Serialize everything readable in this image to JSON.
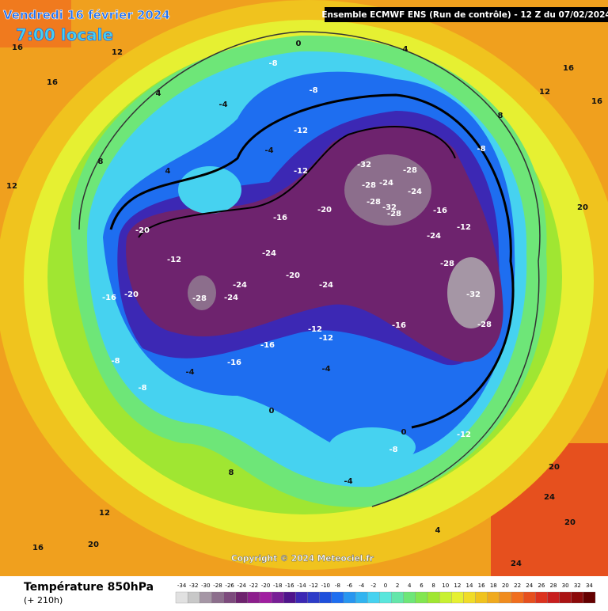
{
  "header": {
    "date": "Vendredi 16 février 2024",
    "time": "7:00 locale",
    "run": "Ensemble ECMWF ENS  (Run de contrôle)  -  12 Z du 07/02/2024",
    "copyright": "Copyright © 2024 Meteociel.fr"
  },
  "legend": {
    "title": "Température 850hPa",
    "lead": "(+ 210h)",
    "ticks": [
      -34,
      -32,
      -30,
      -28,
      -26,
      -24,
      -22,
      -20,
      -18,
      -16,
      -14,
      -12,
      -10,
      -8,
      -6,
      -4,
      -2,
      0,
      2,
      4,
      6,
      8,
      10,
      12,
      14,
      16,
      18,
      20,
      22,
      24,
      26,
      28,
      30,
      32,
      34
    ],
    "colors": [
      "#e1e1e1",
      "#c8c8c8",
      "#a596a5",
      "#8c6e8c",
      "#7d4b7d",
      "#6e236e",
      "#8c1e8c",
      "#a01ea0",
      "#781e96",
      "#50148c",
      "#3c28b4",
      "#2d3cc8",
      "#1e50dc",
      "#1e6ef0",
      "#2896f0",
      "#32b4f0",
      "#46d2f0",
      "#5ae6dc",
      "#64e6aa",
      "#6ee678",
      "#82e650",
      "#a0e632",
      "#c8f032",
      "#e6f032",
      "#f0dc28",
      "#f0c31e",
      "#f0aa1e",
      "#f08c1e",
      "#f06e1e",
      "#e6501e",
      "#dc321e",
      "#c81e1e",
      "#aa1414",
      "#8c0a0a",
      "#640000"
    ]
  },
  "map_labels": [
    16,
    12,
    16,
    4,
    8,
    12,
    4,
    -8,
    -8,
    -4,
    -4,
    0,
    -12,
    -12,
    -12,
    -16,
    -16,
    -20,
    -20,
    -12,
    -24,
    -20,
    -24,
    -28,
    -24,
    -24,
    -16,
    -20,
    -16,
    -12,
    -32,
    -28,
    -24,
    -28,
    -32,
    -28,
    -24,
    -28,
    -16,
    -12,
    -24,
    -8,
    -28,
    -32,
    -28,
    -16,
    -12,
    -8,
    -8,
    -4,
    0,
    -4,
    -8,
    4,
    8,
    12,
    16,
    20,
    24,
    20,
    24,
    20,
    16,
    12,
    8,
    16,
    20,
    4,
    0,
    -4
  ]
}
